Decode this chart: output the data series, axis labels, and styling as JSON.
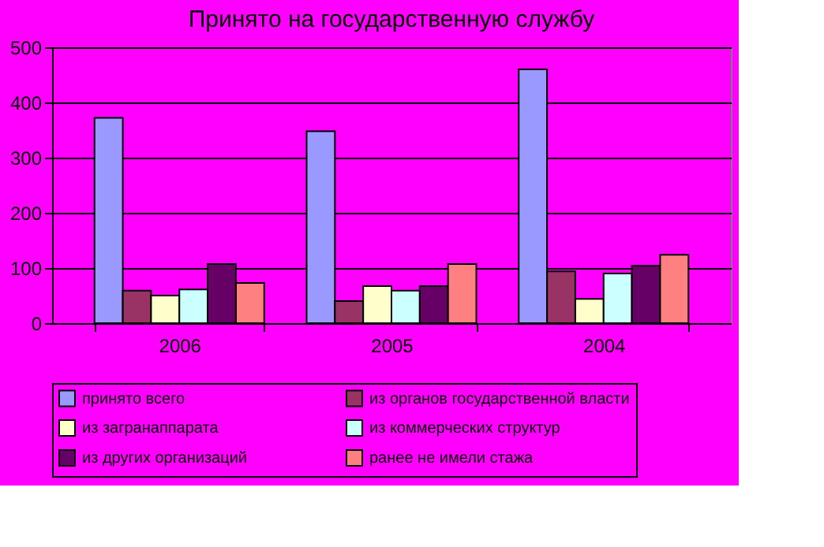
{
  "chart_data": {
    "type": "bar",
    "title": "Принято на государственную службу",
    "categories": [
      "2006",
      "2005",
      "2004"
    ],
    "series": [
      {
        "name": "принято всего",
        "color": "#9999ff",
        "values": [
          372,
          348,
          460
        ]
      },
      {
        "name": "из органов государственной власти",
        "color": "#993366",
        "values": [
          59,
          40,
          94
        ]
      },
      {
        "name": "из загранаппарата",
        "color": "#ffffcc",
        "values": [
          50,
          67,
          44
        ]
      },
      {
        "name": "из коммерческих структур",
        "color": "#ccffff",
        "values": [
          61,
          59,
          90
        ]
      },
      {
        "name": "из других организаций",
        "color": "#660066",
        "values": [
          107,
          67,
          104
        ]
      },
      {
        "name": "ранее не имели стажа",
        "color": "#ff8080",
        "values": [
          73,
          107,
          124
        ]
      }
    ],
    "ylim": [
      0,
      500
    ],
    "yticks": [
      0,
      100,
      200,
      300,
      400,
      500
    ],
    "grid": "y",
    "legend": "bottom"
  }
}
